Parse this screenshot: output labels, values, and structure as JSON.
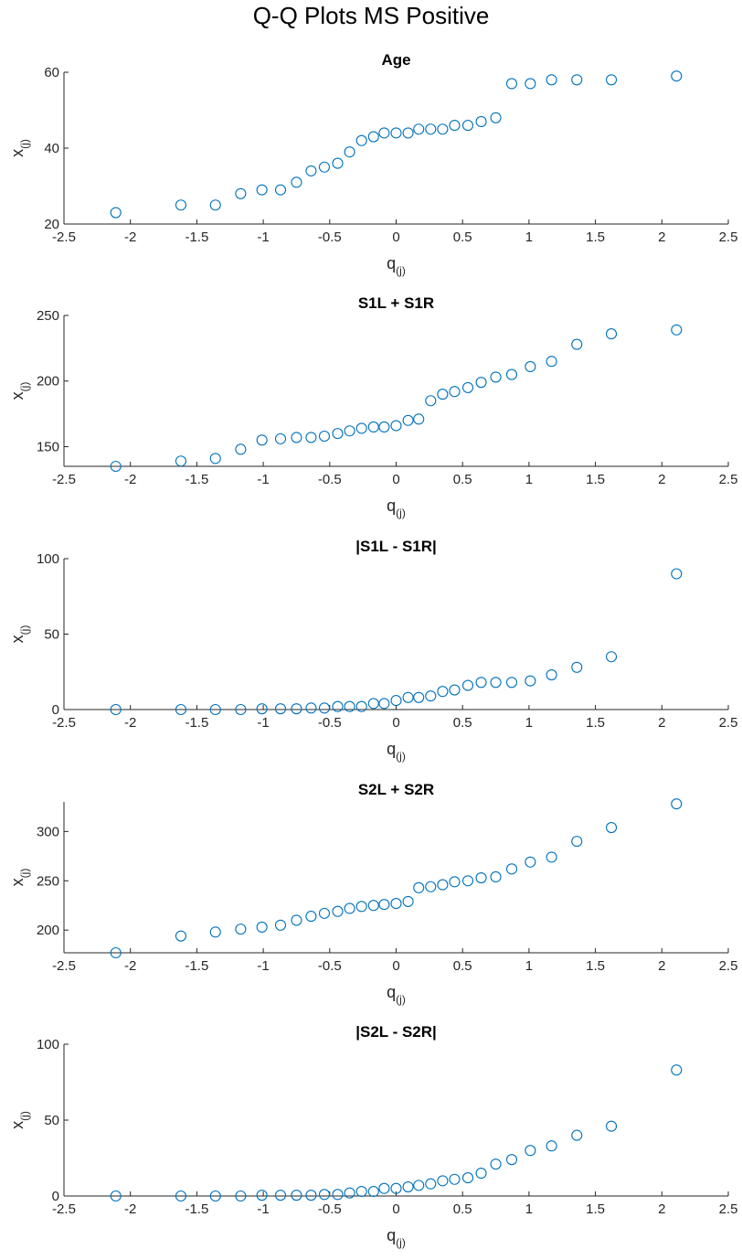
{
  "figure": {
    "title": "Q-Q Plots MS Positive"
  },
  "colors": {
    "marker": "#0072BD",
    "axis": "#262626",
    "background": "#ffffff"
  },
  "chart_data": [
    {
      "type": "scatter",
      "title": "Age",
      "xlabel": "q",
      "xlabel_sub": "(j)",
      "ylabel": "x",
      "ylabel_sub": "(j)",
      "xlim": [
        -2.5,
        2.5
      ],
      "ylim": [
        20,
        60
      ],
      "xticks": [
        -2.5,
        -2,
        -1.5,
        -1,
        -0.5,
        0,
        0.5,
        1,
        1.5,
        2,
        2.5
      ],
      "xtick_labels": [
        "-2.5",
        "-2",
        "-1.5",
        "-1",
        "-0.5",
        "0",
        "0.5",
        "1",
        "1.5",
        "2",
        "2.5"
      ],
      "yticks": [
        20,
        40,
        60
      ],
      "ytick_labels": [
        "20",
        "40",
        "60"
      ],
      "marker": "open-circle",
      "x": [
        -2.11,
        -1.62,
        -1.36,
        -1.17,
        -1.01,
        -0.87,
        -0.75,
        -0.64,
        -0.54,
        -0.44,
        -0.35,
        -0.26,
        -0.17,
        -0.09,
        0,
        0.09,
        0.17,
        0.26,
        0.35,
        0.44,
        0.54,
        0.64,
        0.75,
        0.87,
        1.01,
        1.17,
        1.36,
        1.62,
        2.11
      ],
      "y": [
        23,
        25,
        25,
        28,
        29,
        29,
        31,
        34,
        35,
        36,
        39,
        42,
        43,
        44,
        44,
        44,
        45,
        45,
        45,
        46,
        46,
        47,
        48,
        57,
        57,
        58,
        58,
        58,
        59
      ]
    },
    {
      "type": "scatter",
      "title": "S1L + S1R",
      "xlabel": "q",
      "xlabel_sub": "(j)",
      "ylabel": "x",
      "ylabel_sub": "(j)",
      "xlim": [
        -2.5,
        2.5
      ],
      "ylim": [
        135,
        250
      ],
      "xticks": [
        -2.5,
        -2,
        -1.5,
        -1,
        -0.5,
        0,
        0.5,
        1,
        1.5,
        2,
        2.5
      ],
      "xtick_labels": [
        "-2.5",
        "-2",
        "-1.5",
        "-1",
        "-0.5",
        "0",
        "0.5",
        "1",
        "1.5",
        "2",
        "2.5"
      ],
      "yticks": [
        150,
        200,
        250
      ],
      "ytick_labels": [
        "150",
        "200",
        "250"
      ],
      "marker": "open-circle",
      "x": [
        -2.11,
        -1.62,
        -1.36,
        -1.17,
        -1.01,
        -0.87,
        -0.75,
        -0.64,
        -0.54,
        -0.44,
        -0.35,
        -0.26,
        -0.17,
        -0.09,
        0,
        0.09,
        0.17,
        0.26,
        0.35,
        0.44,
        0.54,
        0.64,
        0.75,
        0.87,
        1.01,
        1.17,
        1.36,
        1.62,
        2.11
      ],
      "y": [
        135,
        139,
        141,
        148,
        155,
        156,
        157,
        157,
        158,
        160,
        162,
        164,
        165,
        165,
        166,
        170,
        171,
        185,
        190,
        192,
        195,
        199,
        203,
        205,
        211,
        215,
        228,
        236,
        239
      ]
    },
    {
      "type": "scatter",
      "title": "|S1L - S1R|",
      "xlabel": "q",
      "xlabel_sub": "(j)",
      "ylabel": "x",
      "ylabel_sub": "(j)",
      "xlim": [
        -2.5,
        2.5
      ],
      "ylim": [
        0,
        100
      ],
      "xticks": [
        -2.5,
        -2,
        -1.5,
        -1,
        -0.5,
        0,
        0.5,
        1,
        1.5,
        2,
        2.5
      ],
      "xtick_labels": [
        "-2.5",
        "-2",
        "-1.5",
        "-1",
        "-0.5",
        "0",
        "0.5",
        "1",
        "1.5",
        "2",
        "2.5"
      ],
      "yticks": [
        0,
        50,
        100
      ],
      "ytick_labels": [
        "0",
        "50",
        "100"
      ],
      "marker": "open-circle",
      "x": [
        -2.11,
        -1.62,
        -1.36,
        -1.17,
        -1.01,
        -0.87,
        -0.75,
        -0.64,
        -0.54,
        -0.44,
        -0.35,
        -0.26,
        -0.17,
        -0.09,
        0,
        0.09,
        0.17,
        0.26,
        0.35,
        0.44,
        0.54,
        0.64,
        0.75,
        0.87,
        1.01,
        1.17,
        1.36,
        1.62,
        2.11
      ],
      "y": [
        0,
        0,
        0,
        0,
        0.5,
        0.5,
        0.5,
        1,
        1,
        2,
        2,
        2,
        4,
        4,
        6,
        8,
        8,
        9,
        12,
        13,
        16,
        18,
        18,
        18,
        19,
        23,
        28,
        35,
        90
      ]
    },
    {
      "type": "scatter",
      "title": "S2L + S2R",
      "xlabel": "q",
      "xlabel_sub": "(j)",
      "ylabel": "x",
      "ylabel_sub": "(j)",
      "xlim": [
        -2.5,
        2.5
      ],
      "ylim": [
        177,
        330
      ],
      "xticks": [
        -2.5,
        -2,
        -1.5,
        -1,
        -0.5,
        0,
        0.5,
        1,
        1.5,
        2,
        2.5
      ],
      "xtick_labels": [
        "-2.5",
        "-2",
        "-1.5",
        "-1",
        "-0.5",
        "0",
        "0.5",
        "1",
        "1.5",
        "2",
        "2.5"
      ],
      "yticks": [
        200,
        250,
        300
      ],
      "ytick_labels": [
        "200",
        "250",
        "300"
      ],
      "marker": "open-circle",
      "x": [
        -2.11,
        -1.62,
        -1.36,
        -1.17,
        -1.01,
        -0.87,
        -0.75,
        -0.64,
        -0.54,
        -0.44,
        -0.35,
        -0.26,
        -0.17,
        -0.09,
        0,
        0.09,
        0.17,
        0.26,
        0.35,
        0.44,
        0.54,
        0.64,
        0.75,
        0.87,
        1.01,
        1.17,
        1.36,
        1.62,
        2.11
      ],
      "y": [
        177,
        194,
        198,
        201,
        203,
        205,
        210,
        214,
        217,
        219,
        222,
        224,
        225,
        226,
        227,
        229,
        243,
        244,
        246,
        249,
        250,
        253,
        254,
        262,
        269,
        274,
        290,
        304,
        328
      ]
    },
    {
      "type": "scatter",
      "title": "|S2L - S2R|",
      "xlabel": "q",
      "xlabel_sub": "(j)",
      "ylabel": "x",
      "ylabel_sub": "(j)",
      "xlim": [
        -2.5,
        2.5
      ],
      "ylim": [
        0,
        100
      ],
      "xticks": [
        -2.5,
        -2,
        -1.5,
        -1,
        -0.5,
        0,
        0.5,
        1,
        1.5,
        2,
        2.5
      ],
      "xtick_labels": [
        "-2.5",
        "-2",
        "-1.5",
        "-1",
        "-0.5",
        "0",
        "0.5",
        "1",
        "1.5",
        "2",
        "2.5"
      ],
      "yticks": [
        0,
        50,
        100
      ],
      "ytick_labels": [
        "0",
        "50",
        "100"
      ],
      "marker": "open-circle",
      "x": [
        -2.11,
        -1.62,
        -1.36,
        -1.17,
        -1.01,
        -0.87,
        -0.75,
        -0.64,
        -0.54,
        -0.44,
        -0.35,
        -0.26,
        -0.17,
        -0.09,
        0,
        0.09,
        0.17,
        0.26,
        0.35,
        0.44,
        0.54,
        0.64,
        0.75,
        0.87,
        1.01,
        1.17,
        1.36,
        1.62,
        2.11
      ],
      "y": [
        0,
        0,
        0,
        0,
        0.5,
        0.5,
        0.5,
        0.5,
        1,
        1,
        2,
        3,
        3,
        5,
        5,
        6,
        7,
        8,
        10,
        11,
        12,
        15,
        21,
        24,
        30,
        33,
        40,
        46,
        83
      ]
    }
  ]
}
